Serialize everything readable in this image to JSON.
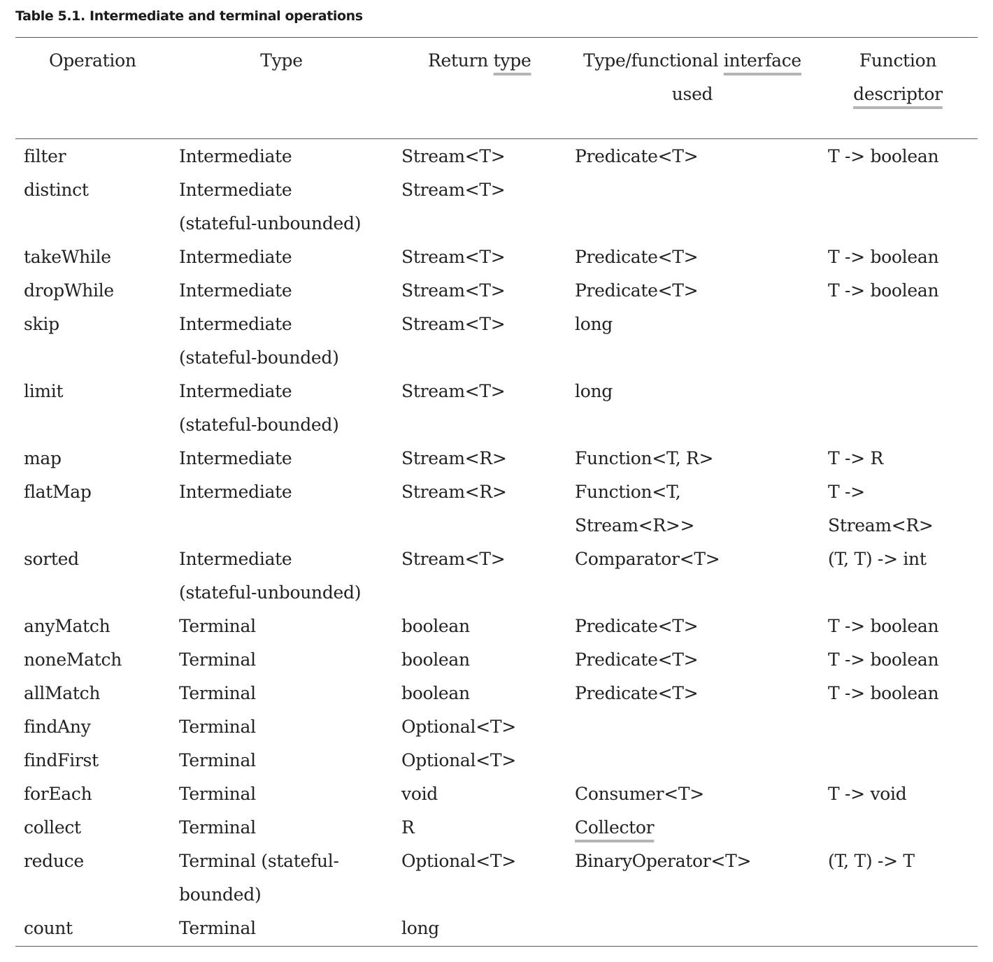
{
  "table": {
    "caption": "Table 5.1. Intermediate and terminal operations",
    "headers": {
      "operation": "Operation",
      "type": "Type",
      "return_type_a": "Return ",
      "return_type_b": "type",
      "interface_a": "Type/functional ",
      "interface_b": "interface",
      "interface_c": "used",
      "descriptor_a": "Function",
      "descriptor_b": "descriptor"
    },
    "rows": [
      {
        "op": "filter",
        "type": [
          "Intermediate"
        ],
        "ret": [
          "Stream<T>"
        ],
        "iface": [
          "Predicate<T>"
        ],
        "desc": [
          "T -> boolean"
        ]
      },
      {
        "op": "distinct",
        "type": [
          "Intermediate",
          "(stateful-unbounded)"
        ],
        "ret": [
          "Stream<T>"
        ],
        "iface": [
          ""
        ],
        "desc": [
          ""
        ]
      },
      {
        "op": "takeWhile",
        "type": [
          "Intermediate"
        ],
        "ret": [
          "Stream<T>"
        ],
        "iface": [
          "Predicate<T>"
        ],
        "desc": [
          "T -> boolean"
        ]
      },
      {
        "op": "dropWhile",
        "type": [
          "Intermediate"
        ],
        "ret": [
          "Stream<T>"
        ],
        "iface": [
          "Predicate<T>"
        ],
        "desc": [
          "T -> boolean"
        ]
      },
      {
        "op": "skip",
        "type": [
          "Intermediate",
          "(stateful-bounded)"
        ],
        "ret": [
          "Stream<T>"
        ],
        "iface": [
          "long"
        ],
        "desc": [
          ""
        ]
      },
      {
        "op": "limit",
        "type": [
          "Intermediate",
          "(stateful-bounded)"
        ],
        "ret": [
          "Stream<T>"
        ],
        "iface": [
          "long"
        ],
        "desc": [
          ""
        ]
      },
      {
        "op": "map",
        "type": [
          "Intermediate"
        ],
        "ret": [
          "Stream<R>"
        ],
        "iface": [
          "Function<T, R>"
        ],
        "desc": [
          "T -> R"
        ]
      },
      {
        "op": "flatMap",
        "type": [
          "Intermediate"
        ],
        "ret": [
          "Stream<R>"
        ],
        "iface": [
          "Function<T,",
          "Stream<R>>"
        ],
        "desc": [
          "T ->",
          "Stream<R>"
        ]
      },
      {
        "op": "sorted",
        "type": [
          "Intermediate",
          "(stateful-unbounded)"
        ],
        "ret": [
          "Stream<T>"
        ],
        "iface": [
          "Comparator<T>"
        ],
        "desc": [
          "(T, T) -> int"
        ]
      },
      {
        "op": "anyMatch",
        "type": [
          "Terminal"
        ],
        "ret": [
          "boolean"
        ],
        "iface": [
          "Predicate<T>"
        ],
        "desc": [
          "T -> boolean"
        ]
      },
      {
        "op": "noneMatch",
        "type": [
          "Terminal"
        ],
        "ret": [
          "boolean"
        ],
        "iface": [
          "Predicate<T>"
        ],
        "desc": [
          "T -> boolean"
        ]
      },
      {
        "op": "allMatch",
        "type": [
          "Terminal"
        ],
        "ret": [
          "boolean"
        ],
        "iface": [
          "Predicate<T>"
        ],
        "desc": [
          "T -> boolean"
        ]
      },
      {
        "op": "findAny",
        "type": [
          "Terminal"
        ],
        "ret": [
          "Optional<T>"
        ],
        "iface": [
          ""
        ],
        "desc": [
          ""
        ]
      },
      {
        "op": "findFirst",
        "type": [
          "Terminal"
        ],
        "ret": [
          "Optional<T>"
        ],
        "iface": [
          ""
        ],
        "desc": [
          ""
        ]
      },
      {
        "op": "forEach",
        "type": [
          "Terminal"
        ],
        "ret": [
          "void"
        ],
        "iface": [
          "Consumer<T>"
        ],
        "desc": [
          "T -> void"
        ]
      },
      {
        "op": "collect",
        "type": [
          "Terminal"
        ],
        "ret": [
          "R"
        ],
        "iface": [
          "Collector"
        ],
        "desc": [
          ""
        ]
      },
      {
        "op": "reduce",
        "type": [
          "Terminal (stateful-",
          "bounded)"
        ],
        "ret": [
          "Optional<T>"
        ],
        "iface": [
          "BinaryOperator<T>"
        ],
        "desc": [
          "(T, T) -> T"
        ]
      },
      {
        "op": "count",
        "type": [
          "Terminal"
        ],
        "ret": [
          "long"
        ],
        "iface": [
          ""
        ],
        "desc": [
          ""
        ]
      }
    ]
  }
}
